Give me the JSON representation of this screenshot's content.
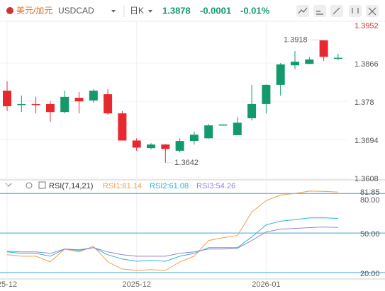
{
  "header": {
    "symbol_cn": "美元/加元",
    "symbol": "USDCAD",
    "period": "日K",
    "price": "1.3878",
    "change": "-0.0001",
    "change_pct": "-0.01%"
  },
  "chart_data": [
    {
      "type": "candlestick",
      "categories": [
        "25-12",
        null,
        null,
        null,
        null,
        null,
        null,
        null,
        null,
        "2025-12",
        null,
        null,
        null,
        null,
        null,
        null,
        null,
        null,
        "2026-01",
        null,
        null,
        null,
        null,
        null
      ],
      "open": [
        1.3804,
        1.3772,
        1.3774,
        1.3774,
        1.3756,
        1.3788,
        1.3782,
        1.3796,
        1.3753,
        1.3692,
        1.3675,
        1.3683,
        1.3669,
        1.3691,
        1.3697,
        1.3727,
        1.3704,
        1.3742,
        1.3774,
        1.3817,
        1.3861,
        1.3864,
        1.3917,
        1.3877
      ],
      "high": [
        1.3825,
        1.3793,
        1.379,
        1.378,
        1.3804,
        1.3801,
        1.3807,
        1.3807,
        1.3758,
        1.3697,
        1.3686,
        1.3684,
        1.3697,
        1.3712,
        1.3729,
        1.3729,
        1.3745,
        1.3817,
        1.3818,
        1.3866,
        1.3893,
        1.388,
        1.3918,
        1.3887
      ],
      "low": [
        1.3758,
        1.3756,
        1.3753,
        1.3734,
        1.3753,
        1.3753,
        1.3777,
        1.375,
        1.3692,
        1.3669,
        1.3672,
        1.3642,
        1.3665,
        1.3683,
        1.3696,
        1.3726,
        1.3704,
        1.3737,
        1.3753,
        1.3793,
        1.3852,
        1.3864,
        1.3871,
        1.3872
      ],
      "close": [
        1.3769,
        1.3774,
        1.3772,
        1.3756,
        1.379,
        1.378,
        1.3804,
        1.3753,
        1.3692,
        1.3676,
        1.3683,
        1.3673,
        1.3691,
        1.3705,
        1.3726,
        1.3728,
        1.3732,
        1.3774,
        1.3817,
        1.3863,
        1.3869,
        1.3874,
        1.388,
        1.3878
      ],
      "up_color": "#139a6a",
      "down_color": "#e8282f",
      "high_label": "1.3918",
      "low_label": "1.3642",
      "ylim": [
        1.361,
        1.396
      ],
      "yticks": [
        1.3952,
        1.3866,
        1.378,
        1.3694,
        1.3608
      ],
      "top_tick_color": "#e8282f",
      "grid": true
    },
    {
      "type": "line",
      "title": "RSI(7,14,21)",
      "series": [
        {
          "name": "RSI1",
          "color": "#f0a04b",
          "values": [
            33.5,
            32.4,
            32.4,
            28.1,
            37.8,
            35.7,
            40.0,
            28.1,
            22.7,
            21.6,
            22.2,
            21.6,
            28.1,
            32.4,
            44.3,
            46.5,
            48.1,
            65.9,
            74.6,
            78.9,
            80.0,
            81.85,
            81.6,
            81.14
          ]
        },
        {
          "name": "RSI2",
          "color": "#2cb5d6",
          "values": [
            35.7,
            34.6,
            34.6,
            32.4,
            37.8,
            36.8,
            38.9,
            33.5,
            30.3,
            28.6,
            29.2,
            28.6,
            32.4,
            34.6,
            38.9,
            38.9,
            38.9,
            47.0,
            56.2,
            59.0,
            60.2,
            61.5,
            61.6,
            61.08
          ]
        },
        {
          "name": "RSI3",
          "color": "#9b7fd4",
          "values": [
            36.2,
            35.7,
            35.7,
            34.6,
            37.8,
            37.3,
            38.9,
            35.7,
            33.5,
            32.4,
            32.4,
            32.4,
            34.6,
            35.7,
            37.8,
            37.8,
            38.4,
            44.3,
            50.8,
            53.0,
            53.5,
            54.1,
            54.6,
            54.26
          ]
        }
      ],
      "ylim": [
        13,
        85
      ],
      "yticks": [
        {
          "value": 80,
          "label": "80.00"
        },
        81.85,
        {
          "value": 50,
          "label": "50.00"
        },
        {
          "value": 20,
          "label": "20.00"
        }
      ],
      "level_color": "#3aa6d8"
    }
  ]
}
